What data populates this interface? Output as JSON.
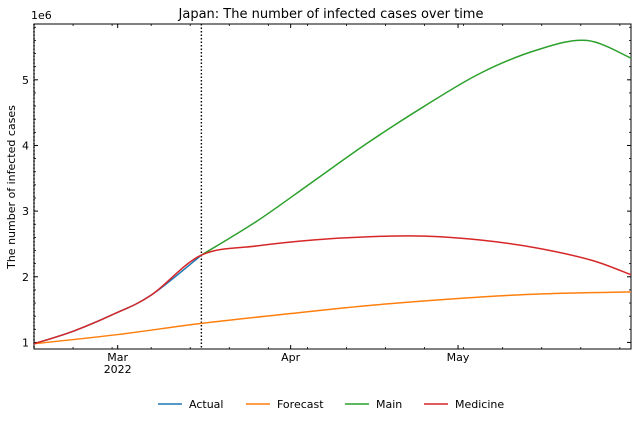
{
  "chart_data": {
    "type": "line",
    "title": "Japan: The number of infected cases over time",
    "xlabel": "",
    "ylabel": "The number of infected cases",
    "y_offset_label": "1e6",
    "x_range": [
      "2022-02-14",
      "2022-06-01"
    ],
    "ylim": [
      0.9,
      5.85
    ],
    "y_unit": "millions",
    "y_ticks": [
      1,
      2,
      3,
      4,
      5
    ],
    "y_tick_labels": [
      "1",
      "2",
      "3",
      "4",
      "5"
    ],
    "x_ticks": [
      {
        "date": "2022-03-01",
        "label": "Mar",
        "sublabel": "2022"
      },
      {
        "date": "2022-04-01",
        "label": "Apr",
        "sublabel": ""
      },
      {
        "date": "2022-05-01",
        "label": "May",
        "sublabel": ""
      }
    ],
    "vlines": [
      "2022-02-14",
      "2022-03-16"
    ],
    "grid": false,
    "legend": {
      "position": "bottom-center",
      "entries": [
        "Actual",
        "Forecast",
        "Main",
        "Medicine"
      ]
    },
    "series": [
      {
        "name": "Actual",
        "color": "#1f77b4",
        "points": [
          [
            "2022-02-14",
            0.98
          ],
          [
            "2022-02-21",
            1.17
          ],
          [
            "2022-02-28",
            1.42
          ],
          [
            "2022-03-07",
            1.72
          ],
          [
            "2022-03-16",
            2.33
          ]
        ]
      },
      {
        "name": "Forecast",
        "color": "#ff7f0e",
        "points": [
          [
            "2022-02-14",
            0.98
          ],
          [
            "2022-03-01",
            1.12
          ],
          [
            "2022-03-16",
            1.29
          ],
          [
            "2022-04-01",
            1.44
          ],
          [
            "2022-04-16",
            1.57
          ],
          [
            "2022-05-01",
            1.67
          ],
          [
            "2022-05-16",
            1.74
          ],
          [
            "2022-06-01",
            1.77
          ]
        ]
      },
      {
        "name": "Main",
        "color": "#2ca02c",
        "points": [
          [
            "2022-03-16",
            2.33
          ],
          [
            "2022-03-26",
            2.85
          ],
          [
            "2022-04-05",
            3.45
          ],
          [
            "2022-04-15",
            4.05
          ],
          [
            "2022-04-25",
            4.6
          ],
          [
            "2022-05-05",
            5.1
          ],
          [
            "2022-05-15",
            5.45
          ],
          [
            "2022-05-24",
            5.6
          ],
          [
            "2022-06-01",
            5.33
          ]
        ]
      },
      {
        "name": "Medicine",
        "color": "#d62728",
        "points": [
          [
            "2022-02-14",
            0.98
          ],
          [
            "2022-02-21",
            1.17
          ],
          [
            "2022-02-28",
            1.42
          ],
          [
            "2022-03-07",
            1.72
          ],
          [
            "2022-03-16",
            2.33
          ],
          [
            "2022-03-26",
            2.47
          ],
          [
            "2022-04-05",
            2.56
          ],
          [
            "2022-04-15",
            2.61
          ],
          [
            "2022-04-25",
            2.62
          ],
          [
            "2022-05-05",
            2.56
          ],
          [
            "2022-05-15",
            2.44
          ],
          [
            "2022-05-25",
            2.25
          ],
          [
            "2022-06-01",
            2.03
          ]
        ]
      }
    ]
  }
}
